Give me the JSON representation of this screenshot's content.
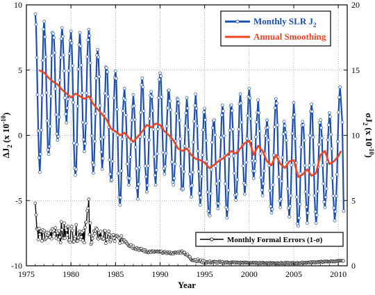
{
  "chart_data": {
    "type": "line",
    "title": "",
    "xlabel": "Year",
    "ylabel_left": "ΔJ",
    "ylabel_left_sub": "2",
    "ylabel_left_paren": "(x 10",
    "ylabel_left_exp": "-10",
    "ylabel_left_close": ")",
    "ylabel_right": "σJ",
    "ylabel_right_sub": "2",
    "ylabel_right_paren": "(x 10",
    "ylabel_right_exp": "-10",
    "ylabel_right_close": ")",
    "xlim": [
      1975,
      2011
    ],
    "ylim_left": [
      -10,
      10
    ],
    "ylim_right": [
      0,
      20
    ],
    "x_ticks": [
      1975,
      1980,
      1985,
      1990,
      1995,
      2000,
      2005,
      2010
    ],
    "x_tick_labels": [
      "1975",
      "1980",
      "1985",
      "1990",
      "1995",
      "2000",
      "2005",
      "2010"
    ],
    "y_left_ticks": [
      -10,
      -5,
      0,
      5,
      10
    ],
    "y_left_tick_labels": [
      "-10",
      "-5",
      "0",
      "5",
      "10"
    ],
    "y_right_ticks": [
      0,
      5,
      10,
      15,
      20
    ],
    "y_right_tick_labels": [
      "0",
      "5",
      "10",
      "15",
      "20"
    ],
    "grid": true,
    "grid_style": "dotted",
    "legend_top": {
      "placement": "top-right",
      "entries": [
        {
          "name": "Monthly SLR J",
          "sub": "2",
          "color": "#1a4fb0"
        },
        {
          "name": "Annual Smoothing",
          "color": "#ee4422"
        }
      ]
    },
    "legend_bottom": {
      "placement": "bottom-right",
      "entries": [
        {
          "name": "Monthly Formal Errors (1-σ)",
          "color": "#000000"
        }
      ]
    },
    "series": [
      {
        "name": "Monthly SLR J2",
        "axis": "left",
        "color": "#1a4fb0",
        "marker": "circle",
        "annual_peaks": [
          [
            1976.0,
            9.3,
            -2.5
          ],
          [
            1977.0,
            8.6,
            -1.5
          ],
          [
            1978.0,
            8.1,
            -0.5
          ],
          [
            1979.0,
            8.2,
            1.3
          ],
          [
            1980.0,
            7.9,
            -3.0
          ],
          [
            1981.0,
            7.5,
            -1.2
          ],
          [
            1982.0,
            8.3,
            -3.1
          ],
          [
            1983.0,
            6.8,
            -2.2
          ],
          [
            1984.0,
            5.2,
            -3.8
          ],
          [
            1985.0,
            4.8,
            -5.0
          ],
          [
            1986.0,
            3.6,
            -3.6
          ],
          [
            1987.0,
            3.0,
            -4.5
          ],
          [
            1988.0,
            4.2,
            -4.0
          ],
          [
            1989.0,
            3.4,
            -3.5
          ],
          [
            1990.0,
            4.8,
            -3.2
          ],
          [
            1991.0,
            3.5,
            -4.0
          ],
          [
            1992.0,
            3.1,
            -4.3
          ],
          [
            1993.0,
            2.5,
            -4.5
          ],
          [
            1994.0,
            2.9,
            -5.0
          ],
          [
            1995.0,
            2.2,
            -6.4
          ],
          [
            1996.0,
            1.4,
            -5.5
          ],
          [
            1997.0,
            2.0,
            -6.0
          ],
          [
            1998.0,
            2.5,
            -5.2
          ],
          [
            1999.0,
            2.8,
            -4.2
          ],
          [
            2000.0,
            3.5,
            -3.5
          ],
          [
            2001.0,
            2.4,
            -4.5
          ],
          [
            2002.0,
            1.2,
            -6.0
          ],
          [
            2003.0,
            3.2,
            -5.2
          ],
          [
            2004.0,
            1.0,
            -6.3
          ],
          [
            2005.0,
            2.4,
            -7.1
          ],
          [
            2006.0,
            1.4,
            -6.4
          ],
          [
            2007.0,
            2.7,
            -6.7
          ],
          [
            2008.0,
            1.2,
            -5.5
          ],
          [
            2009.0,
            1.5,
            -6.2
          ],
          [
            2010.2,
            3.7,
            -5.8
          ]
        ]
      },
      {
        "name": "Annual Smoothing",
        "axis": "left",
        "color": "#ee4422",
        "x": [
          1976.4,
          1977.0,
          1977.5,
          1978.0,
          1978.5,
          1979.0,
          1979.5,
          1980.0,
          1980.5,
          1981.0,
          1981.5,
          1982.0,
          1982.5,
          1983.0,
          1983.5,
          1984.0,
          1984.5,
          1985.0,
          1985.5,
          1986.0,
          1986.5,
          1987.0,
          1987.5,
          1988.0,
          1988.5,
          1989.0,
          1989.5,
          1990.0,
          1990.5,
          1991.0,
          1991.5,
          1992.0,
          1992.5,
          1993.0,
          1993.5,
          1994.0,
          1994.5,
          1995.0,
          1995.5,
          1996.0,
          1996.5,
          1997.0,
          1997.5,
          1998.0,
          1998.5,
          1999.0,
          1999.5,
          2000.0,
          2000.5,
          2001.0,
          2001.5,
          2002.0,
          2002.5,
          2003.0,
          2003.5,
          2004.0,
          2004.5,
          2005.0,
          2005.5,
          2006.0,
          2006.5,
          2007.0,
          2007.5,
          2008.0,
          2008.5,
          2009.0,
          2009.5,
          2010.0,
          2010.3
        ],
        "y": [
          5.0,
          4.8,
          4.4,
          4.1,
          3.9,
          3.5,
          3.2,
          2.9,
          3.2,
          3.0,
          2.8,
          3.0,
          2.4,
          2.0,
          1.6,
          1.2,
          0.5,
          0.3,
          0.0,
          0.2,
          -0.2,
          -0.5,
          -0.1,
          0.3,
          0.8,
          0.6,
          0.9,
          0.8,
          0.3,
          0.0,
          -0.4,
          -1.0,
          -1.2,
          -1.0,
          -1.5,
          -1.8,
          -1.9,
          -2.1,
          -2.5,
          -2.3,
          -2.0,
          -1.8,
          -1.5,
          -1.2,
          -1.4,
          -1.0,
          -0.6,
          -0.4,
          -1.5,
          -0.8,
          -1.2,
          -2.0,
          -2.3,
          -1.5,
          -2.2,
          -2.5,
          -2.0,
          -1.9,
          -3.2,
          -3.0,
          -2.6,
          -3.1,
          -2.9,
          -1.5,
          -1.2,
          -2.2,
          -2.0,
          -1.6,
          -1.2
        ]
      },
      {
        "name": "Monthly Formal Errors (1-σ)",
        "axis": "right",
        "color": "#000000",
        "marker": "circle",
        "envelope": {
          "x": [
            1976.0,
            1976.3,
            1976.8,
            1977.5,
            1978.3,
            1979.0,
            1980.0,
            1981.0,
            1981.8,
            1982.0,
            1982.3,
            1983.0,
            1984.0,
            1985.0,
            1986.0,
            1986.6,
            1987.5,
            1988.5,
            1990.0,
            1991.5,
            1992.6,
            1993.5,
            1995.0,
            1997.0,
            2000.0,
            2005.0,
            2010.6
          ],
          "base": [
            2.0,
            2.0,
            1.8,
            1.8,
            2.0,
            1.7,
            1.8,
            1.9,
            1.6,
            1.8,
            1.6,
            1.9,
            1.7,
            1.6,
            1.8,
            1.4,
            1.2,
            1.0,
            1.0,
            0.9,
            1.0,
            0.4,
            0.2,
            0.2,
            0.2,
            0.15,
            0.35
          ],
          "peak": [
            4.8,
            3.2,
            2.8,
            2.6,
            3.5,
            3.4,
            3.2,
            3.1,
            4.2,
            5.1,
            3.0,
            2.9,
            2.7,
            2.5,
            2.2,
            1.9,
            1.6,
            1.3,
            1.2,
            1.1,
            1.3,
            0.8,
            0.5,
            0.4,
            0.3,
            0.3,
            0.45
          ]
        }
      }
    ]
  }
}
